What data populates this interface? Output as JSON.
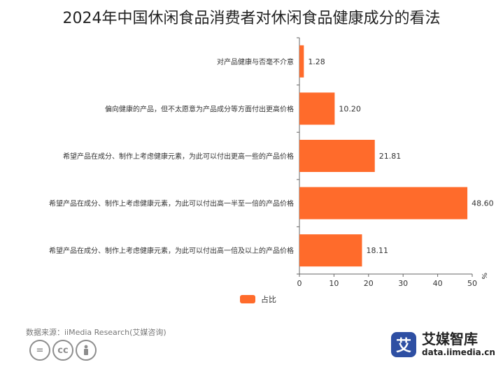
{
  "title": "2024年中国休闲食品消费者对休闲食品健康成分的看法",
  "source": "数据来源：iiMedia Research(艾媒咨询)",
  "brand": {
    "name": "艾媒智库",
    "url": "data.iimedia.cn",
    "logo_char": "艾"
  },
  "license_icons": [
    "equals-icon",
    "cc-icon",
    "person-icon"
  ],
  "colors": {
    "bar": "#FF6B2B",
    "logo": "#2E4FA3"
  },
  "chart_data": {
    "type": "bar",
    "orientation": "horizontal",
    "title": "2024年中国休闲食品消费者对休闲食品健康成分的看法",
    "categories": [
      "对产品健康与否毫不介意",
      "偏向健康的产品，但不太愿意为产品成分等方面付出更高价格",
      "希望产品在成分、制作上考虑健康元素，为此可以付出更高一些的产品价格",
      "希望产品在成分、制作上考虑健康元素，为此可以付出高一半至一倍的产品价格",
      "希望产品在成分、制作上考虑健康元素，为此可以付出高一倍及以上的产品价格"
    ],
    "series": [
      {
        "name": "占比",
        "values": [
          1.28,
          10.2,
          21.81,
          48.6,
          18.11
        ]
      }
    ],
    "value_labels": [
      "1.28",
      "10.20",
      "21.81",
      "48.60",
      "18.11"
    ],
    "xlim": [
      0,
      50
    ],
    "xticks": [
      0,
      10,
      20,
      30,
      40,
      50
    ],
    "xlabel": "%",
    "legend_position": "bottom",
    "grid": false
  }
}
